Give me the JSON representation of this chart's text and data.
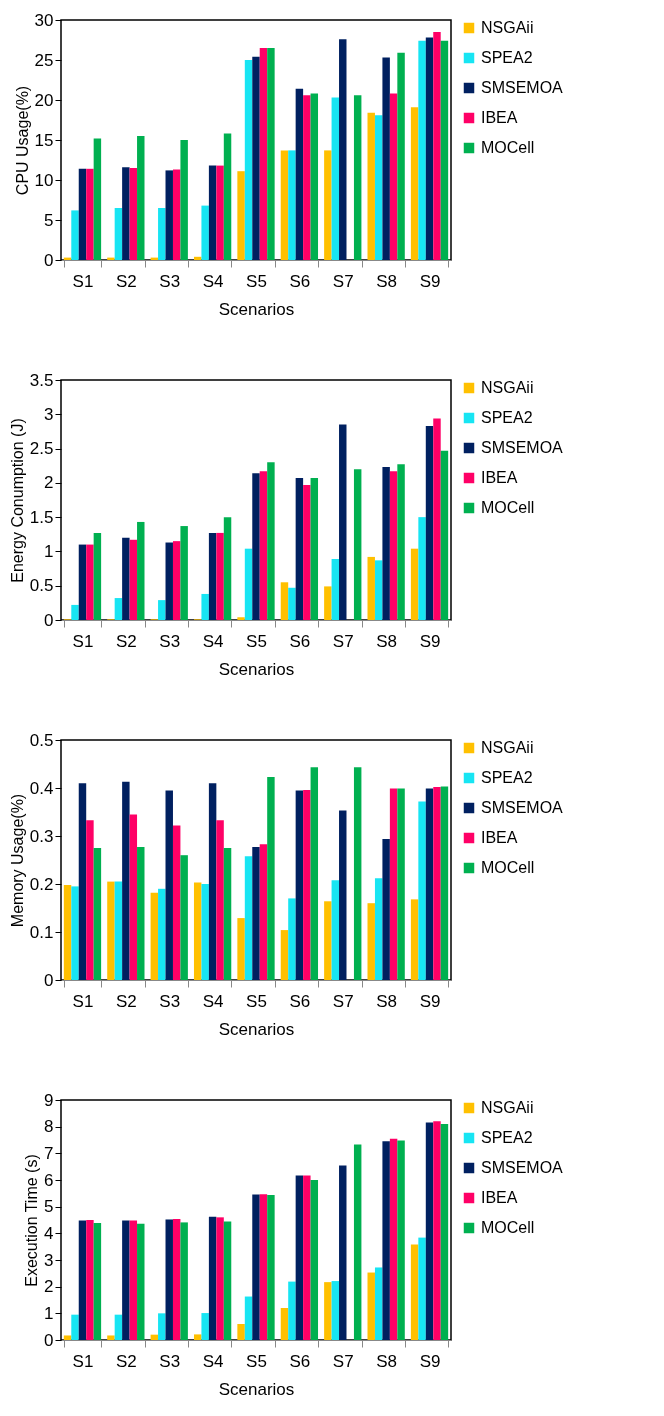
{
  "chart_data": [
    {
      "type": "bar",
      "xlabel": "Scenarios",
      "ylabel": "CPU Usage(%)",
      "categories": [
        "S1",
        "S2",
        "S3",
        "S4",
        "S5",
        "S6",
        "S7",
        "S8",
        "S9"
      ],
      "ylim": [
        0,
        30
      ],
      "yticks": [
        0,
        5,
        10,
        15,
        20,
        25,
        30
      ],
      "grid": false,
      "legend": "right",
      "series": [
        {
          "name": "NSGAii",
          "color": "#ffc000",
          "values": [
            0.3,
            0.3,
            0.3,
            0.4,
            11.1,
            13.7,
            13.7,
            18.4,
            19.1
          ]
        },
        {
          "name": "SPEA2",
          "color": "#17e5f3",
          "values": [
            6.2,
            6.5,
            6.5,
            6.8,
            25,
            13.7,
            20.3,
            18.1,
            27.4
          ]
        },
        {
          "name": "SMSEMOA",
          "color": "#002060",
          "values": [
            11.4,
            11.6,
            11.2,
            11.8,
            25.4,
            21.4,
            27.6,
            25.3,
            27.8
          ]
        },
        {
          "name": "IBEA",
          "color": "#ff0066",
          "values": [
            11.4,
            11.5,
            11.3,
            11.8,
            26.5,
            20.6,
            null,
            20.8,
            28.5
          ]
        },
        {
          "name": "MOCell",
          "color": "#00b050",
          "values": [
            15.2,
            15.5,
            15,
            15.8,
            26.5,
            20.8,
            20.6,
            25.9,
            27.4
          ]
        }
      ]
    },
    {
      "type": "bar",
      "xlabel": "Scenarios",
      "ylabel": "Energy Conumption (J)",
      "categories": [
        "S1",
        "S2",
        "S3",
        "S4",
        "S5",
        "S6",
        "S7",
        "S8",
        "S9"
      ],
      "ylim": [
        0,
        3.5
      ],
      "yticks": [
        0,
        0.5,
        1,
        1.5,
        2,
        2.5,
        3,
        3.5
      ],
      "grid": false,
      "legend": "right",
      "series": [
        {
          "name": "NSGAii",
          "color": "#ffc000",
          "values": [
            0.01,
            0.01,
            0.01,
            0.01,
            0.04,
            0.55,
            0.49,
            0.92,
            1.04
          ]
        },
        {
          "name": "SPEA2",
          "color": "#17e5f3",
          "values": [
            0.22,
            0.32,
            0.29,
            0.38,
            1.04,
            0.47,
            0.89,
            0.87,
            1.5
          ]
        },
        {
          "name": "SMSEMOA",
          "color": "#002060",
          "values": [
            1.1,
            1.2,
            1.13,
            1.27,
            2.14,
            2.07,
            2.85,
            2.23,
            2.83
          ]
        },
        {
          "name": "IBEA",
          "color": "#ff0066",
          "values": [
            1.1,
            1.17,
            1.15,
            1.27,
            2.17,
            1.97,
            null,
            2.17,
            2.94
          ]
        },
        {
          "name": "MOCell",
          "color": "#00b050",
          "values": [
            1.27,
            1.43,
            1.37,
            1.5,
            2.3,
            2.07,
            2.2,
            2.27,
            2.47
          ]
        }
      ]
    },
    {
      "type": "bar",
      "xlabel": "Scenarios",
      "ylabel": "Memory Usage(%)",
      "categories": [
        "S1",
        "S2",
        "S3",
        "S4",
        "S5",
        "S6",
        "S7",
        "S8",
        "S9"
      ],
      "ylim": [
        0,
        0.5
      ],
      "yticks": [
        0,
        0.1,
        0.2,
        0.3,
        0.4,
        0.5
      ],
      "grid": false,
      "legend": "right",
      "series": [
        {
          "name": "NSGAii",
          "color": "#ffc000",
          "values": [
            0.198,
            0.205,
            0.182,
            0.203,
            0.129,
            0.104,
            0.164,
            0.16,
            0.168
          ]
        },
        {
          "name": "SPEA2",
          "color": "#17e5f3",
          "values": [
            0.195,
            0.205,
            0.19,
            0.2,
            0.258,
            0.17,
            0.208,
            0.212,
            0.372
          ]
        },
        {
          "name": "SMSEMOA",
          "color": "#002060",
          "values": [
            0.41,
            0.413,
            0.395,
            0.41,
            0.277,
            0.395,
            0.353,
            0.294,
            0.399
          ]
        },
        {
          "name": "IBEA",
          "color": "#ff0066",
          "values": [
            0.333,
            0.345,
            0.322,
            0.333,
            0.283,
            0.396,
            null,
            0.399,
            0.402
          ]
        },
        {
          "name": "MOCell",
          "color": "#00b050",
          "values": [
            0.275,
            0.277,
            0.26,
            0.275,
            0.423,
            0.443,
            0.443,
            0.399,
            0.403
          ]
        }
      ]
    },
    {
      "type": "bar",
      "xlabel": "Scenarios",
      "ylabel": "Execution Time (s)",
      "categories": [
        "S1",
        "S2",
        "S3",
        "S4",
        "S5",
        "S6",
        "S7",
        "S8",
        "S9"
      ],
      "ylim": [
        0,
        9
      ],
      "yticks": [
        0,
        1,
        2,
        3,
        4,
        5,
        6,
        7,
        8,
        9
      ],
      "grid": false,
      "legend": "right",
      "series": [
        {
          "name": "NSGAii",
          "color": "#ffc000",
          "values": [
            0.17,
            0.17,
            0.2,
            0.21,
            0.6,
            1.2,
            2.17,
            2.53,
            3.58
          ]
        },
        {
          "name": "SPEA2",
          "color": "#17e5f3",
          "values": [
            0.95,
            0.95,
            1,
            1.01,
            1.63,
            2.19,
            2.21,
            2.72,
            3.84
          ]
        },
        {
          "name": "SMSEMOA",
          "color": "#002060",
          "values": [
            4.48,
            4.48,
            4.52,
            4.62,
            5.46,
            6.17,
            6.54,
            7.45,
            8.16
          ]
        },
        {
          "name": "IBEA",
          "color": "#ff0066",
          "values": [
            4.5,
            4.48,
            4.54,
            4.6,
            5.47,
            6.17,
            null,
            7.55,
            8.2
          ]
        },
        {
          "name": "MOCell",
          "color": "#00b050",
          "values": [
            4.39,
            4.36,
            4.41,
            4.44,
            5.44,
            6.0,
            7.33,
            7.48,
            8.1
          ]
        }
      ]
    }
  ]
}
